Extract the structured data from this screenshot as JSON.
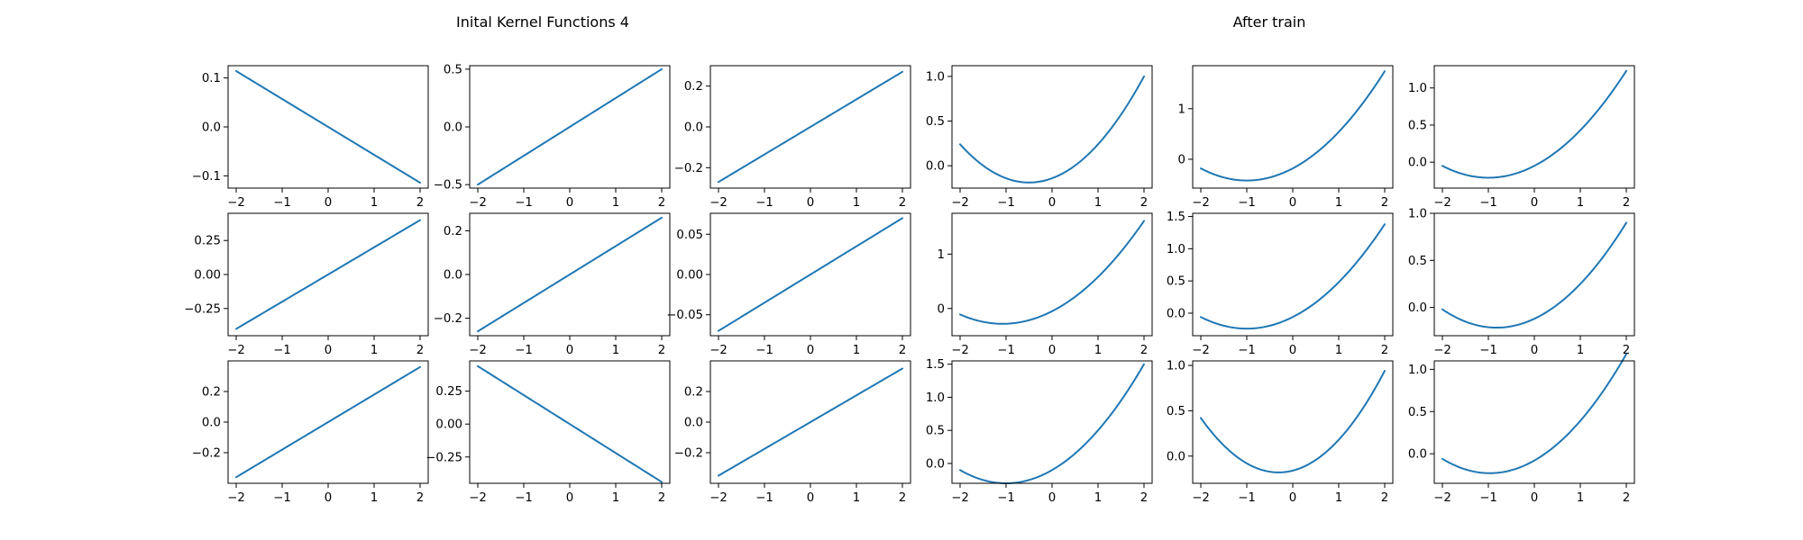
{
  "figure": {
    "left_title": "Inital Kernel Functions 4",
    "right_title": "After train"
  },
  "colors": {
    "line": "#1f77b4"
  },
  "chart_data": [
    {
      "type": "line",
      "panel": "row1-col1",
      "x_range": [
        -2,
        2
      ],
      "xticks": [
        "−2",
        "−1",
        "0",
        "1",
        "2"
      ],
      "ylim": [
        -0.125,
        0.125
      ],
      "yticks": [
        {
          "v": 0.1,
          "label": "0.1"
        },
        {
          "v": 0,
          "label": "0.0"
        },
        {
          "v": -0.1,
          "label": "−0.1"
        }
      ],
      "kind": "linear",
      "slope": -0.057,
      "intercept": 0.0
    },
    {
      "type": "line",
      "panel": "row1-col2",
      "x_range": [
        -2,
        2
      ],
      "xticks": [
        "−2",
        "−1",
        "0",
        "1",
        "2"
      ],
      "ylim": [
        -0.53,
        0.53
      ],
      "yticks": [
        {
          "v": 0.5,
          "label": "0.5"
        },
        {
          "v": 0,
          "label": "0.0"
        },
        {
          "v": -0.5,
          "label": "−0.5"
        }
      ],
      "kind": "linear",
      "slope": 0.25,
      "intercept": 0.0
    },
    {
      "type": "line",
      "panel": "row1-col3",
      "x_range": [
        -2,
        2
      ],
      "xticks": [
        "−2",
        "−1",
        "0",
        "1",
        "2"
      ],
      "ylim": [
        -0.3,
        0.3
      ],
      "yticks": [
        {
          "v": 0.2,
          "label": "0.2"
        },
        {
          "v": 0,
          "label": "0.0"
        },
        {
          "v": -0.2,
          "label": "−0.2"
        }
      ],
      "kind": "linear",
      "slope": 0.135,
      "intercept": 0.0
    },
    {
      "type": "line",
      "panel": "row1-col4",
      "x_range": [
        -2,
        2
      ],
      "xticks": [
        "−2",
        "−1",
        "0",
        "1",
        "2"
      ],
      "ylim": [
        -0.25,
        1.12
      ],
      "yticks": [
        {
          "v": 1,
          "label": "1.0"
        },
        {
          "v": 0.5,
          "label": "0.5"
        },
        {
          "v": 0,
          "label": "0.0"
        }
      ],
      "kind": "quadratic",
      "a": 0.19,
      "b": 0.19,
      "c": -0.14
    },
    {
      "type": "line",
      "panel": "row1-col5",
      "x_range": [
        -2,
        2
      ],
      "xticks": [
        "−2",
        "−1",
        "0",
        "1",
        "2"
      ],
      "ylim": [
        -0.57,
        1.85
      ],
      "yticks": [
        {
          "v": 1,
          "label": "1"
        },
        {
          "v": 0,
          "label": "0"
        }
      ],
      "kind": "quadratic",
      "a": 0.24,
      "b": 0.48,
      "c": -0.18
    },
    {
      "type": "line",
      "panel": "row1-col6",
      "x_range": [
        -2,
        2
      ],
      "xticks": [
        "−2",
        "−1",
        "0",
        "1",
        "2"
      ],
      "ylim": [
        -0.35,
        1.3
      ],
      "yticks": [
        {
          "v": 1,
          "label": "1.0"
        },
        {
          "v": 0.5,
          "label": "0.5"
        },
        {
          "v": 0,
          "label": "0.0"
        }
      ],
      "kind": "quadratic",
      "a": 0.16,
      "b": 0.32,
      "c": -0.05
    },
    {
      "type": "line",
      "panel": "row2-col1",
      "x_range": [
        -2,
        2
      ],
      "xticks": [
        "−2",
        "−1",
        "0",
        "1",
        "2"
      ],
      "ylim": [
        -0.45,
        0.45
      ],
      "yticks": [
        {
          "v": 0.25,
          "label": "0.25"
        },
        {
          "v": 0,
          "label": "0.00"
        },
        {
          "v": -0.25,
          "label": "−0.25"
        }
      ],
      "kind": "linear",
      "slope": 0.2,
      "intercept": 0.0
    },
    {
      "type": "line",
      "panel": "row2-col2",
      "x_range": [
        -2,
        2
      ],
      "xticks": [
        "−2",
        "−1",
        "0",
        "1",
        "2"
      ],
      "ylim": [
        -0.28,
        0.28
      ],
      "yticks": [
        {
          "v": 0.2,
          "label": "0.2"
        },
        {
          "v": 0,
          "label": "0.0"
        },
        {
          "v": -0.2,
          "label": "−0.2"
        }
      ],
      "kind": "linear",
      "slope": 0.13,
      "intercept": 0.0
    },
    {
      "type": "line",
      "panel": "row2-col3",
      "x_range": [
        -2,
        2
      ],
      "xticks": [
        "−2",
        "−1",
        "0",
        "1",
        "2"
      ],
      "ylim": [
        -0.076,
        0.076
      ],
      "yticks": [
        {
          "v": 0.05,
          "label": "0.05"
        },
        {
          "v": 0,
          "label": "0.00"
        },
        {
          "v": -0.05,
          "label": "−0.05"
        }
      ],
      "kind": "linear",
      "slope": 0.035,
      "intercept": 0.0
    },
    {
      "type": "line",
      "panel": "row2-col4",
      "x_range": [
        -2,
        2
      ],
      "xticks": [
        "−2",
        "−1",
        "0",
        "1",
        "2"
      ],
      "ylim": [
        -0.5,
        1.75
      ],
      "yticks": [
        {
          "v": 1,
          "label": "1"
        },
        {
          "v": 0,
          "label": "0"
        }
      ],
      "kind": "quadratic",
      "a": 0.2,
      "b": 0.43,
      "c": -0.05
    },
    {
      "type": "line",
      "panel": "row2-col5",
      "x_range": [
        -2,
        2
      ],
      "xticks": [
        "−2",
        "−1",
        "0",
        "1",
        "2"
      ],
      "ylim": [
        -0.35,
        1.55
      ],
      "yticks": [
        {
          "v": 1.5,
          "label": "1.5"
        },
        {
          "v": 1,
          "label": "1.0"
        },
        {
          "v": 0.5,
          "label": "0.5"
        },
        {
          "v": 0,
          "label": "0.0"
        }
      ],
      "kind": "quadratic",
      "a": 0.18,
      "b": 0.36,
      "c": -0.06
    },
    {
      "type": "line",
      "panel": "row2-col6",
      "x_range": [
        -2,
        2
      ],
      "xticks": [
        "−2",
        "−1",
        "0",
        "1",
        "2"
      ],
      "ylim": [
        -0.3,
        1.0
      ],
      "yticks": [
        {
          "v": 1,
          "label": "1.0"
        },
        {
          "v": 0.5,
          "label": "0.5"
        },
        {
          "v": 0,
          "label": "0.0"
        }
      ],
      "kind": "quadratic",
      "a": 0.14,
      "b": 0.23,
      "c": -0.12
    },
    {
      "type": "line",
      "panel": "row3-col1",
      "x_range": [
        -2,
        2
      ],
      "xticks": [
        "−2",
        "−1",
        "0",
        "1",
        "2"
      ],
      "ylim": [
        -0.4,
        0.4
      ],
      "yticks": [
        {
          "v": 0.2,
          "label": "0.2"
        },
        {
          "v": 0,
          "label": "0.0"
        },
        {
          "v": -0.2,
          "label": "−0.2"
        }
      ],
      "kind": "linear",
      "slope": 0.18,
      "intercept": 0.0
    },
    {
      "type": "line",
      "panel": "row3-col2",
      "x_range": [
        -2,
        2
      ],
      "xticks": [
        "−2",
        "−1",
        "0",
        "1",
        "2"
      ],
      "ylim": [
        -0.45,
        0.48
      ],
      "yticks": [
        {
          "v": 0.25,
          "label": "0.25"
        },
        {
          "v": 0,
          "label": "0.00"
        },
        {
          "v": -0.25,
          "label": "−0.25"
        }
      ],
      "kind": "linear",
      "slope": -0.22,
      "intercept": 0.0
    },
    {
      "type": "line",
      "panel": "row3-col3",
      "x_range": [
        -2,
        2
      ],
      "xticks": [
        "−2",
        "−1",
        "0",
        "1",
        "2"
      ],
      "ylim": [
        -0.4,
        0.4
      ],
      "yticks": [
        {
          "v": 0.2,
          "label": "0.2"
        },
        {
          "v": 0,
          "label": "0.0"
        },
        {
          "v": -0.2,
          "label": "−0.2"
        }
      ],
      "kind": "linear",
      "slope": 0.175,
      "intercept": 0.0
    },
    {
      "type": "line",
      "panel": "row3-col4",
      "x_range": [
        -2,
        2
      ],
      "xticks": [
        "−2",
        "−1",
        "0",
        "1",
        "2"
      ],
      "ylim": [
        -0.3,
        1.55
      ],
      "yticks": [
        {
          "v": 1.5,
          "label": "1.5"
        },
        {
          "v": 1,
          "label": "1.0"
        },
        {
          "v": 0.5,
          "label": "0.5"
        },
        {
          "v": 0,
          "label": "0.0"
        }
      ],
      "kind": "quadratic",
      "a": 0.2,
      "b": 0.4,
      "c": -0.1
    },
    {
      "type": "line",
      "panel": "row3-col5",
      "x_range": [
        -2,
        2
      ],
      "xticks": [
        "−2",
        "−1",
        "0",
        "1",
        "2"
      ],
      "ylim": [
        -0.3,
        1.05
      ],
      "yticks": [
        {
          "v": 1,
          "label": "1.0"
        },
        {
          "v": 0.5,
          "label": "0.5"
        },
        {
          "v": 0,
          "label": "0.0"
        }
      ],
      "kind": "quadratic",
      "a": 0.21,
      "b": 0.13,
      "c": -0.16
    },
    {
      "type": "line",
      "panel": "row3-col6",
      "x_range": [
        -2,
        2
      ],
      "xticks": [
        "−2",
        "−1",
        "0",
        "1",
        "2"
      ],
      "ylim": [
        -0.35,
        1.1
      ],
      "yticks": [
        {
          "v": 1,
          "label": "1.0"
        },
        {
          "v": 0.5,
          "label": "0.5"
        },
        {
          "v": 0,
          "label": "0.0"
        }
      ],
      "kind": "quadratic",
      "a": 0.16,
      "b": 0.31,
      "c": -0.08
    }
  ]
}
